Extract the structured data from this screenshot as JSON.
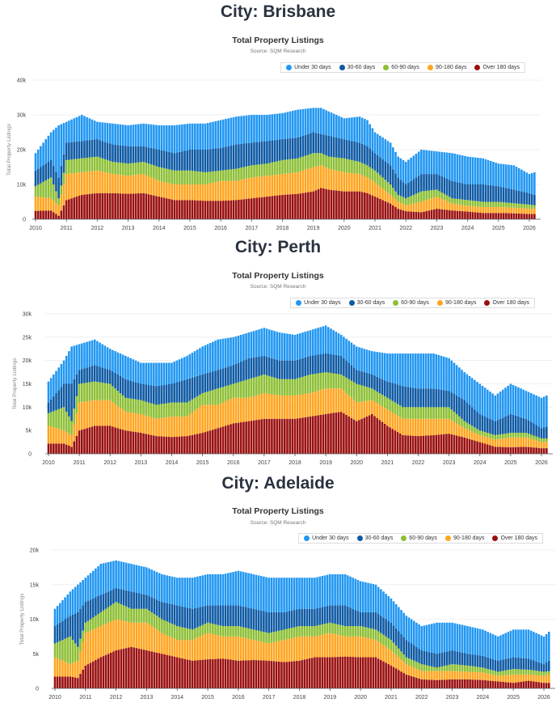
{
  "legend_labels": [
    "Over 180 days",
    "90-180 days",
    "60-90 days",
    "30-60 days",
    "Under 30 days"
  ],
  "colors": [
    "#9a1010",
    "#ffa51f",
    "#8cbf34",
    "#0e5aa4",
    "#2197f2"
  ],
  "chart_data": [
    {
      "city_title": "City: Brisbane",
      "type": "bar",
      "stacked": true,
      "title": "Total Property Listings",
      "subtitle": "Source: SQM Research",
      "ylabel": "Total Property Listings",
      "xlabel": "",
      "ylim": [
        0,
        40000
      ],
      "y_ticks": [
        {
          "v": 0,
          "label": "0"
        },
        {
          "v": 10000,
          "label": "10k"
        },
        {
          "v": 20000,
          "label": "20k"
        },
        {
          "v": 30000,
          "label": "30k"
        },
        {
          "v": 40000,
          "label": "40k"
        }
      ],
      "x_ticks": [
        "2010",
        "2011",
        "2012",
        "2013",
        "2014",
        "2015",
        "2016",
        "2017",
        "2018",
        "2019",
        "2020",
        "2021",
        "2022",
        "2023",
        "2024",
        "2025",
        "2026"
      ],
      "legend": "top-right",
      "x": [
        2010.0,
        2010.5,
        2010.75,
        2011.0,
        2011.5,
        2012.0,
        2012.5,
        2013.0,
        2013.5,
        2014.0,
        2014.5,
        2015.0,
        2015.5,
        2016.0,
        2016.5,
        2017.0,
        2017.5,
        2018.0,
        2018.5,
        2019.0,
        2019.25,
        2019.5,
        2020.0,
        2020.5,
        2020.75,
        2021.0,
        2021.5,
        2021.75,
        2022.0,
        2022.5,
        2023.0,
        2023.5,
        2024.0,
        2024.5,
        2025.0,
        2025.5,
        2026.0,
        2026.17
      ],
      "series": [
        {
          "name": "Over 180 days",
          "values": [
            2400,
            2500,
            1000,
            5500,
            7000,
            7500,
            7500,
            7300,
            7500,
            6500,
            5500,
            5500,
            5300,
            5300,
            5500,
            6000,
            6500,
            7000,
            7300,
            8000,
            9000,
            8500,
            8000,
            8000,
            7500,
            6500,
            4500,
            3000,
            2300,
            2000,
            3000,
            2500,
            2200,
            1800,
            1800,
            1700,
            1500,
            1500
          ]
        },
        {
          "name": "90-180 days",
          "values": [
            4100,
            3500,
            3000,
            7500,
            6500,
            6500,
            5500,
            5200,
            5500,
            4500,
            4500,
            4500,
            4700,
            5700,
            5500,
            6000,
            6000,
            6000,
            6200,
            7000,
            6500,
            6000,
            5500,
            5000,
            4500,
            4000,
            2500,
            2000,
            1700,
            3000,
            3500,
            2000,
            1600,
            1700,
            1700,
            1600,
            1500,
            1500
          ]
        },
        {
          "name": "60-90 days",
          "values": [
            3000,
            6000,
            2000,
            4000,
            4000,
            4000,
            3500,
            3500,
            3500,
            4000,
            4000,
            4000,
            3500,
            3000,
            3500,
            3500,
            3500,
            4000,
            4000,
            4000,
            3500,
            3500,
            4000,
            3500,
            3500,
            3500,
            3000,
            2000,
            2000,
            3000,
            2000,
            1500,
            1700,
            1500,
            1500,
            1300,
            1200,
            1000
          ]
        },
        {
          "name": "30-60 days",
          "values": [
            4500,
            5000,
            6000,
            5000,
            5000,
            5000,
            5000,
            5000,
            4500,
            5000,
            5000,
            6000,
            6500,
            6500,
            7000,
            6500,
            6500,
            6000,
            6000,
            6000,
            5500,
            6000,
            5500,
            5500,
            5500,
            5000,
            5500,
            5000,
            4000,
            5000,
            4500,
            5000,
            4500,
            5000,
            4500,
            3900,
            3300,
            3000
          ]
        },
        {
          "name": "Under 30 days",
          "values": [
            5000,
            8000,
            15000,
            6000,
            7500,
            5000,
            6000,
            6000,
            6500,
            7000,
            8000,
            7500,
            7500,
            8000,
            8000,
            8000,
            7500,
            7500,
            8000,
            7000,
            7500,
            7000,
            6000,
            7500,
            7500,
            6000,
            6500,
            6000,
            6500,
            7000,
            6500,
            8000,
            8000,
            7500,
            6500,
            7000,
            5500,
            6500
          ]
        }
      ]
    },
    {
      "city_title": "City: Perth",
      "type": "bar",
      "stacked": true,
      "title": "Total Property Listings",
      "subtitle": "Source: SQM Research",
      "ylabel": "Total Property Listings",
      "xlabel": "",
      "ylim": [
        0,
        30000
      ],
      "y_ticks": [
        {
          "v": 0,
          "label": "0"
        },
        {
          "v": 5000,
          "label": "5k"
        },
        {
          "v": 10000,
          "label": "10k"
        },
        {
          "v": 15000,
          "label": "15k"
        },
        {
          "v": 20000,
          "label": "20k"
        },
        {
          "v": 25000,
          "label": "25k"
        },
        {
          "v": 30000,
          "label": "30k"
        }
      ],
      "x_ticks": [
        "2010",
        "2011",
        "2012",
        "2013",
        "2014",
        "2015",
        "2016",
        "2017",
        "2018",
        "2019",
        "2020",
        "2021",
        "2022",
        "2023",
        "2024",
        "2025",
        "2026"
      ],
      "legend": "top-right",
      "x": [
        2010.0,
        2010.5,
        2010.75,
        2011.0,
        2011.5,
        2012.0,
        2012.5,
        2013.0,
        2013.5,
        2014.0,
        2014.5,
        2015.0,
        2015.5,
        2016.0,
        2016.5,
        2017.0,
        2017.5,
        2018.0,
        2018.5,
        2019.0,
        2019.5,
        2020.0,
        2020.5,
        2021.0,
        2021.5,
        2022.0,
        2022.5,
        2023.0,
        2023.5,
        2024.0,
        2024.5,
        2025.0,
        2025.5,
        2026.0,
        2026.17
      ],
      "series": [
        {
          "name": "Over 180 days",
          "values": [
            2200,
            2200,
            1500,
            5000,
            6000,
            6000,
            5000,
            4500,
            3800,
            3600,
            3800,
            4500,
            5500,
            6500,
            7000,
            7500,
            7500,
            7500,
            8000,
            8500,
            9000,
            7000,
            8500,
            6000,
            4000,
            3800,
            4000,
            4300,
            3500,
            2500,
            1500,
            1400,
            1500,
            1200,
            1200
          ]
        },
        {
          "name": "90-180 days",
          "values": [
            3800,
            2800,
            2500,
            6000,
            5500,
            5500,
            4000,
            4000,
            3700,
            4400,
            4200,
            6000,
            5000,
            5500,
            5000,
            5500,
            5000,
            5000,
            5000,
            5500,
            5000,
            4000,
            3000,
            3500,
            3500,
            3700,
            3500,
            3200,
            2000,
            1500,
            1500,
            2100,
            2000,
            1300,
            1400
          ]
        },
        {
          "name": "60-90 days",
          "values": [
            2700,
            5000,
            3000,
            4000,
            4000,
            3500,
            3000,
            3000,
            3000,
            3000,
            3000,
            2500,
            3500,
            3000,
            4000,
            4000,
            3500,
            3500,
            4000,
            3500,
            3000,
            4000,
            2500,
            2500,
            2500,
            2500,
            2500,
            2500,
            1500,
            1000,
            1000,
            1000,
            1000,
            800,
            700
          ]
        },
        {
          "name": "30-60 days",
          "values": [
            2300,
            5000,
            8000,
            3000,
            3500,
            3000,
            4000,
            3500,
            4000,
            4000,
            5000,
            4000,
            4000,
            4000,
            4500,
            4000,
            4000,
            4000,
            4000,
            4000,
            4000,
            3000,
            3000,
            3500,
            4500,
            4000,
            4000,
            3500,
            4500,
            3500,
            3000,
            4000,
            3000,
            2200,
            2500
          ]
        },
        {
          "name": "Under 30 days",
          "values": [
            4500,
            5000,
            8000,
            5500,
            5500,
            4500,
            5000,
            4500,
            5000,
            4500,
            5000,
            6000,
            6500,
            6000,
            5500,
            6000,
            6000,
            5500,
            5500,
            6000,
            4500,
            5000,
            5000,
            6000,
            7000,
            7500,
            7500,
            7000,
            6000,
            6500,
            5500,
            6500,
            6000,
            6500,
            6700
          ]
        }
      ]
    },
    {
      "city_title": "City: Adelaide",
      "type": "bar",
      "stacked": true,
      "title": "Total Property Listings",
      "subtitle": "Source: SQM Research",
      "ylabel": "Total Property Listings",
      "xlabel": "",
      "ylim": [
        0,
        20000
      ],
      "y_ticks": [
        {
          "v": 0,
          "label": "0"
        },
        {
          "v": 5000,
          "label": "5k"
        },
        {
          "v": 10000,
          "label": "10k"
        },
        {
          "v": 15000,
          "label": "15k"
        },
        {
          "v": 20000,
          "label": "20k"
        }
      ],
      "x_ticks": [
        "2010",
        "2011",
        "2012",
        "2013",
        "2014",
        "2015",
        "2016",
        "2017",
        "2018",
        "2019",
        "2020",
        "2021",
        "2022",
        "2023",
        "2024",
        "2025",
        "2026"
      ],
      "legend": "top-right",
      "x": [
        2010.0,
        2010.5,
        2010.75,
        2011.0,
        2011.5,
        2012.0,
        2012.5,
        2013.0,
        2013.5,
        2014.0,
        2014.5,
        2015.0,
        2015.5,
        2016.0,
        2016.5,
        2017.0,
        2017.5,
        2018.0,
        2018.5,
        2019.0,
        2019.5,
        2020.0,
        2020.5,
        2021.0,
        2021.5,
        2022.0,
        2022.5,
        2023.0,
        2023.5,
        2024.0,
        2024.5,
        2025.0,
        2025.5,
        2026.0,
        2026.17
      ],
      "series": [
        {
          "name": "Over 180 days",
          "values": [
            1700,
            1700,
            1500,
            3300,
            4500,
            5500,
            6000,
            5500,
            5000,
            4500,
            4000,
            4200,
            4300,
            4000,
            4100,
            4000,
            3800,
            4000,
            4500,
            4500,
            4600,
            4500,
            4500,
            3300,
            2000,
            1300,
            1200,
            1300,
            1300,
            1200,
            1000,
            800,
            1100,
            800,
            800
          ]
        },
        {
          "name": "90-180 days",
          "values": [
            2800,
            1800,
            2500,
            4700,
            4500,
            4500,
            3500,
            4000,
            3000,
            2500,
            3000,
            3800,
            3200,
            3500,
            2900,
            2500,
            3200,
            3500,
            3000,
            3500,
            2900,
            3000,
            2500,
            2200,
            1500,
            1200,
            1300,
            1200,
            1100,
            1100,
            800,
            1200,
            900,
            1000,
            1200
          ]
        },
        {
          "name": "60-90 days",
          "values": [
            2000,
            4000,
            2000,
            1500,
            2000,
            2500,
            2000,
            2000,
            2000,
            2000,
            1500,
            1500,
            1500,
            1500,
            1500,
            1500,
            1500,
            1500,
            1500,
            1500,
            1500,
            1500,
            1500,
            1500,
            1000,
            1000,
            500,
            1000,
            900,
            700,
            600,
            800,
            700,
            600,
            500
          ]
        },
        {
          "name": "30-60 days",
          "values": [
            2500,
            3000,
            5000,
            3000,
            2500,
            2000,
            2500,
            2000,
            2500,
            3000,
            3000,
            2500,
            3000,
            3000,
            3000,
            3000,
            2500,
            2500,
            2500,
            2500,
            3000,
            2000,
            2500,
            2500,
            2500,
            2000,
            2000,
            2000,
            1700,
            1700,
            1600,
            1700,
            1600,
            1100,
            1500
          ]
        },
        {
          "name": "Under 30 days",
          "values": [
            2500,
            3500,
            4000,
            3500,
            4500,
            4000,
            4000,
            4000,
            4000,
            4000,
            4500,
            4500,
            4500,
            5000,
            5000,
            5000,
            5000,
            4500,
            4500,
            4500,
            4500,
            4500,
            4000,
            3500,
            3500,
            3500,
            4500,
            4000,
            4000,
            3800,
            3500,
            4000,
            4200,
            4000,
            4200
          ]
        }
      ]
    }
  ]
}
